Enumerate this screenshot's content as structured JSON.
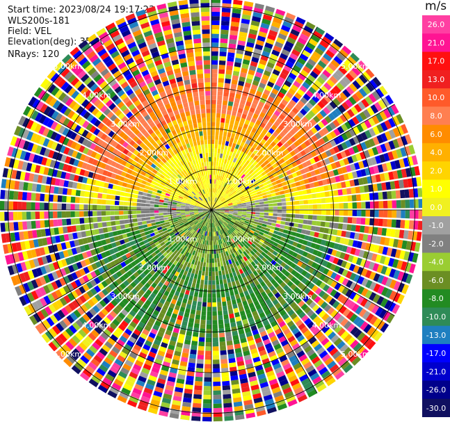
{
  "header": {
    "start_time": "Start time: 2023/08/24 19:17:23",
    "instrument": "WLS200s-181",
    "field": "Field: VEL",
    "elevation": "Elevation(deg): 35.30",
    "nrays": "NRays: 120"
  },
  "colorbar": {
    "unit": "m/s",
    "ticks": [
      "26.0",
      "21.0",
      "17.0",
      "13.0",
      "10.0",
      "8.0",
      "6.0",
      "4.0",
      "2.0",
      "1.0",
      "0.0",
      "-1.0",
      "-2.0",
      "-4.0",
      "-6.0",
      "-8.0",
      "-10.0",
      "-13.0",
      "-17.0",
      "-21.0",
      "-26.0",
      "-30.0"
    ],
    "colors": [
      "#ff3fa2",
      "#ff1493",
      "#ff1010",
      "#f02020",
      "#ff5a2a",
      "#ff7f50",
      "#ff8c00",
      "#ffb000",
      "#ffd400",
      "#ffff00",
      "#f0f020",
      "#a0a0a0",
      "#808080",
      "#9acd32",
      "#6b8e23",
      "#228b22",
      "#2e8b57",
      "#1e7fc0",
      "#0000ff",
      "#0000cd",
      "#00008b",
      "#101060"
    ]
  },
  "chart_data": {
    "type": "heatmap",
    "plot": "PPI radial velocity",
    "range_rings_km": [
      1.0,
      2.0,
      3.0,
      4.0,
      5.0
    ],
    "ring_labels": [
      "1.00km",
      "2.00km",
      "3.00km",
      "4.00km",
      "5.00km"
    ],
    "max_range_km": 5.2,
    "nrays": 120,
    "pattern_by_direction": {
      "north": "positive velocities 1-8 m/s (yellow/orange)",
      "south": "negative velocities -2 to -8 m/s (green)",
      "east-west": "near 0 m/s (gray)",
      "outer_ranges": "noisy, all colors"
    }
  }
}
